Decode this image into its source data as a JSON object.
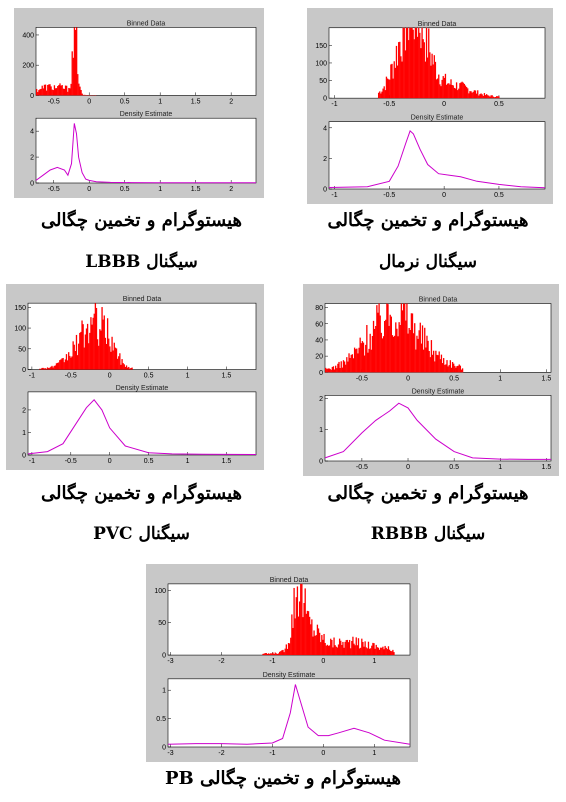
{
  "colors": {
    "figure_bg": "#c8c8c8",
    "axes_bg": "#ffffff",
    "hist": "#ff0000",
    "density": "#cc00cc"
  },
  "figures": [
    {
      "id": "normal",
      "caption1": "هیستوگرام و تخمین چگالی",
      "caption2": "سیگنال نرمال",
      "xlim": [
        -1.05,
        0.92
      ],
      "xticks": [
        -1,
        -0.5,
        0,
        0.5
      ],
      "hist": {
        "title": "Binned Data",
        "ylim": [
          0,
          200
        ],
        "yticks": [
          0,
          50,
          100,
          150
        ],
        "peaks": [
          [
            -0.32,
            190,
            0.12
          ],
          [
            -0.22,
            110,
            0.12
          ],
          [
            0.1,
            35,
            0.15
          ]
        ],
        "base": 4,
        "range": [
          -0.6,
          0.5
        ]
      },
      "density": {
        "title": "Density Estimate",
        "ylim": [
          0,
          4.4
        ],
        "yticks": [
          0,
          2,
          4
        ],
        "x": [
          -1.05,
          -0.7,
          -0.5,
          -0.42,
          -0.35,
          -0.31,
          -0.28,
          -0.22,
          -0.15,
          -0.05,
          0.05,
          0.15,
          0.3,
          0.5,
          0.7,
          0.92
        ],
        "y": [
          0.1,
          0.15,
          0.5,
          1.5,
          3.0,
          3.8,
          3.6,
          2.6,
          1.6,
          1.0,
          0.9,
          0.8,
          0.5,
          0.3,
          0.15,
          0.08
        ]
      }
    },
    {
      "id": "lbbb",
      "caption1": "هیستوگرام و تخمین چگالی",
      "caption2": "سیگنال LBBB",
      "xlim": [
        -0.75,
        2.35
      ],
      "xticks": [
        -0.5,
        0,
        0.5,
        1,
        1.5,
        2
      ],
      "hist": {
        "title": "Binned Data",
        "ylim": [
          0,
          450
        ],
        "yticks": [
          0,
          200,
          400
        ],
        "peaks": [
          [
            -0.2,
            430,
            0.035
          ],
          [
            -0.6,
            60,
            0.15
          ],
          [
            -0.35,
            40,
            0.1
          ]
        ],
        "base": 2,
        "range": [
          -0.75,
          0.1
        ]
      },
      "density": {
        "title": "Density Estimate",
        "ylim": [
          0,
          5
        ],
        "yticks": [
          0,
          2,
          4
        ],
        "x": [
          -0.75,
          -0.65,
          -0.55,
          -0.45,
          -0.35,
          -0.3,
          -0.25,
          -0.21,
          -0.18,
          -0.15,
          -0.1,
          -0.05,
          0.0,
          0.1,
          0.3,
          0.6,
          1.0,
          1.5,
          2.35
        ],
        "y": [
          0.2,
          0.6,
          1.0,
          1.2,
          1.0,
          0.6,
          1.5,
          4.6,
          3.8,
          2.0,
          0.8,
          0.3,
          0.2,
          0.1,
          0.05,
          0.03,
          0.02,
          0.02,
          0.02
        ]
      }
    },
    {
      "id": "rbbb",
      "caption1": "هیستوگرام و تخمین چگالی",
      "caption2": "سیگنال RBBB",
      "xlim": [
        -0.9,
        1.55
      ],
      "xticks": [
        -0.5,
        0,
        0.5,
        1,
        1.5
      ],
      "hist": {
        "title": "Binned Data",
        "ylim": [
          0,
          85
        ],
        "yticks": [
          0,
          20,
          40,
          60,
          80
        ],
        "peaks": [
          [
            -0.1,
            70,
            0.2
          ],
          [
            -0.4,
            30,
            0.2
          ],
          [
            0.25,
            15,
            0.2
          ]
        ],
        "base": 3,
        "range": [
          -0.9,
          0.6
        ]
      },
      "density": {
        "title": "Density Estimate",
        "ylim": [
          0,
          2.1
        ],
        "yticks": [
          0,
          1,
          2
        ],
        "x": [
          -0.9,
          -0.7,
          -0.5,
          -0.35,
          -0.2,
          -0.1,
          0.0,
          0.1,
          0.3,
          0.5,
          0.7,
          1.0,
          1.3,
          1.55
        ],
        "y": [
          0.1,
          0.3,
          0.9,
          1.3,
          1.6,
          1.85,
          1.7,
          1.3,
          0.7,
          0.3,
          0.1,
          0.06,
          0.05,
          0.05
        ]
      }
    },
    {
      "id": "pvc",
      "caption1": "هیستوگرام و تخمین چگالی",
      "caption2": "سیگنال PVC",
      "xlim": [
        -1.05,
        1.88
      ],
      "xticks": [
        -1,
        -0.5,
        0,
        0.5,
        1,
        1.5
      ],
      "hist": {
        "title": "Binned Data",
        "ylim": [
          0,
          160
        ],
        "yticks": [
          0,
          50,
          100,
          150
        ],
        "peaks": [
          [
            -0.2,
            110,
            0.15
          ],
          [
            0.0,
            40,
            0.1
          ],
          [
            -0.45,
            30,
            0.15
          ]
        ],
        "base": 3,
        "range": [
          -0.9,
          0.3
        ]
      },
      "density": {
        "title": "Density Estimate",
        "ylim": [
          0,
          2.8
        ],
        "yticks": [
          0,
          1,
          2
        ],
        "x": [
          -1.05,
          -0.8,
          -0.6,
          -0.45,
          -0.3,
          -0.2,
          -0.1,
          0.0,
          0.2,
          0.5,
          0.8,
          1.2,
          1.88
        ],
        "y": [
          0.05,
          0.15,
          0.5,
          1.3,
          2.1,
          2.45,
          2.0,
          1.2,
          0.4,
          0.1,
          0.05,
          0.03,
          0.02
        ]
      }
    },
    {
      "id": "pb",
      "caption1": "هیستوگرام و تخمین چگالی PB",
      "caption2": "",
      "xlim": [
        -3.05,
        1.7
      ],
      "xticks": [
        -3,
        -2,
        -1,
        0,
        1
      ],
      "hist": {
        "title": "Binned Data",
        "ylim": [
          0,
          110
        ],
        "yticks": [
          0,
          50,
          100
        ],
        "peaks": [
          [
            -0.5,
            95,
            0.1
          ],
          [
            -0.3,
            40,
            0.2
          ],
          [
            0.5,
            20,
            0.6
          ]
        ],
        "base": 2,
        "range": [
          -1.2,
          1.4
        ]
      },
      "density": {
        "title": "Density Estimate",
        "ylim": [
          0,
          1.2
        ],
        "yticks": [
          0,
          0.5,
          1
        ],
        "x": [
          -3.05,
          -2.5,
          -2.0,
          -1.5,
          -1.0,
          -0.8,
          -0.65,
          -0.55,
          -0.45,
          -0.3,
          -0.1,
          0.1,
          0.3,
          0.6,
          0.9,
          1.2,
          1.7
        ],
        "y": [
          0.05,
          0.06,
          0.06,
          0.05,
          0.07,
          0.15,
          0.6,
          1.1,
          0.8,
          0.35,
          0.2,
          0.2,
          0.25,
          0.33,
          0.25,
          0.12,
          0.05
        ]
      }
    }
  ]
}
